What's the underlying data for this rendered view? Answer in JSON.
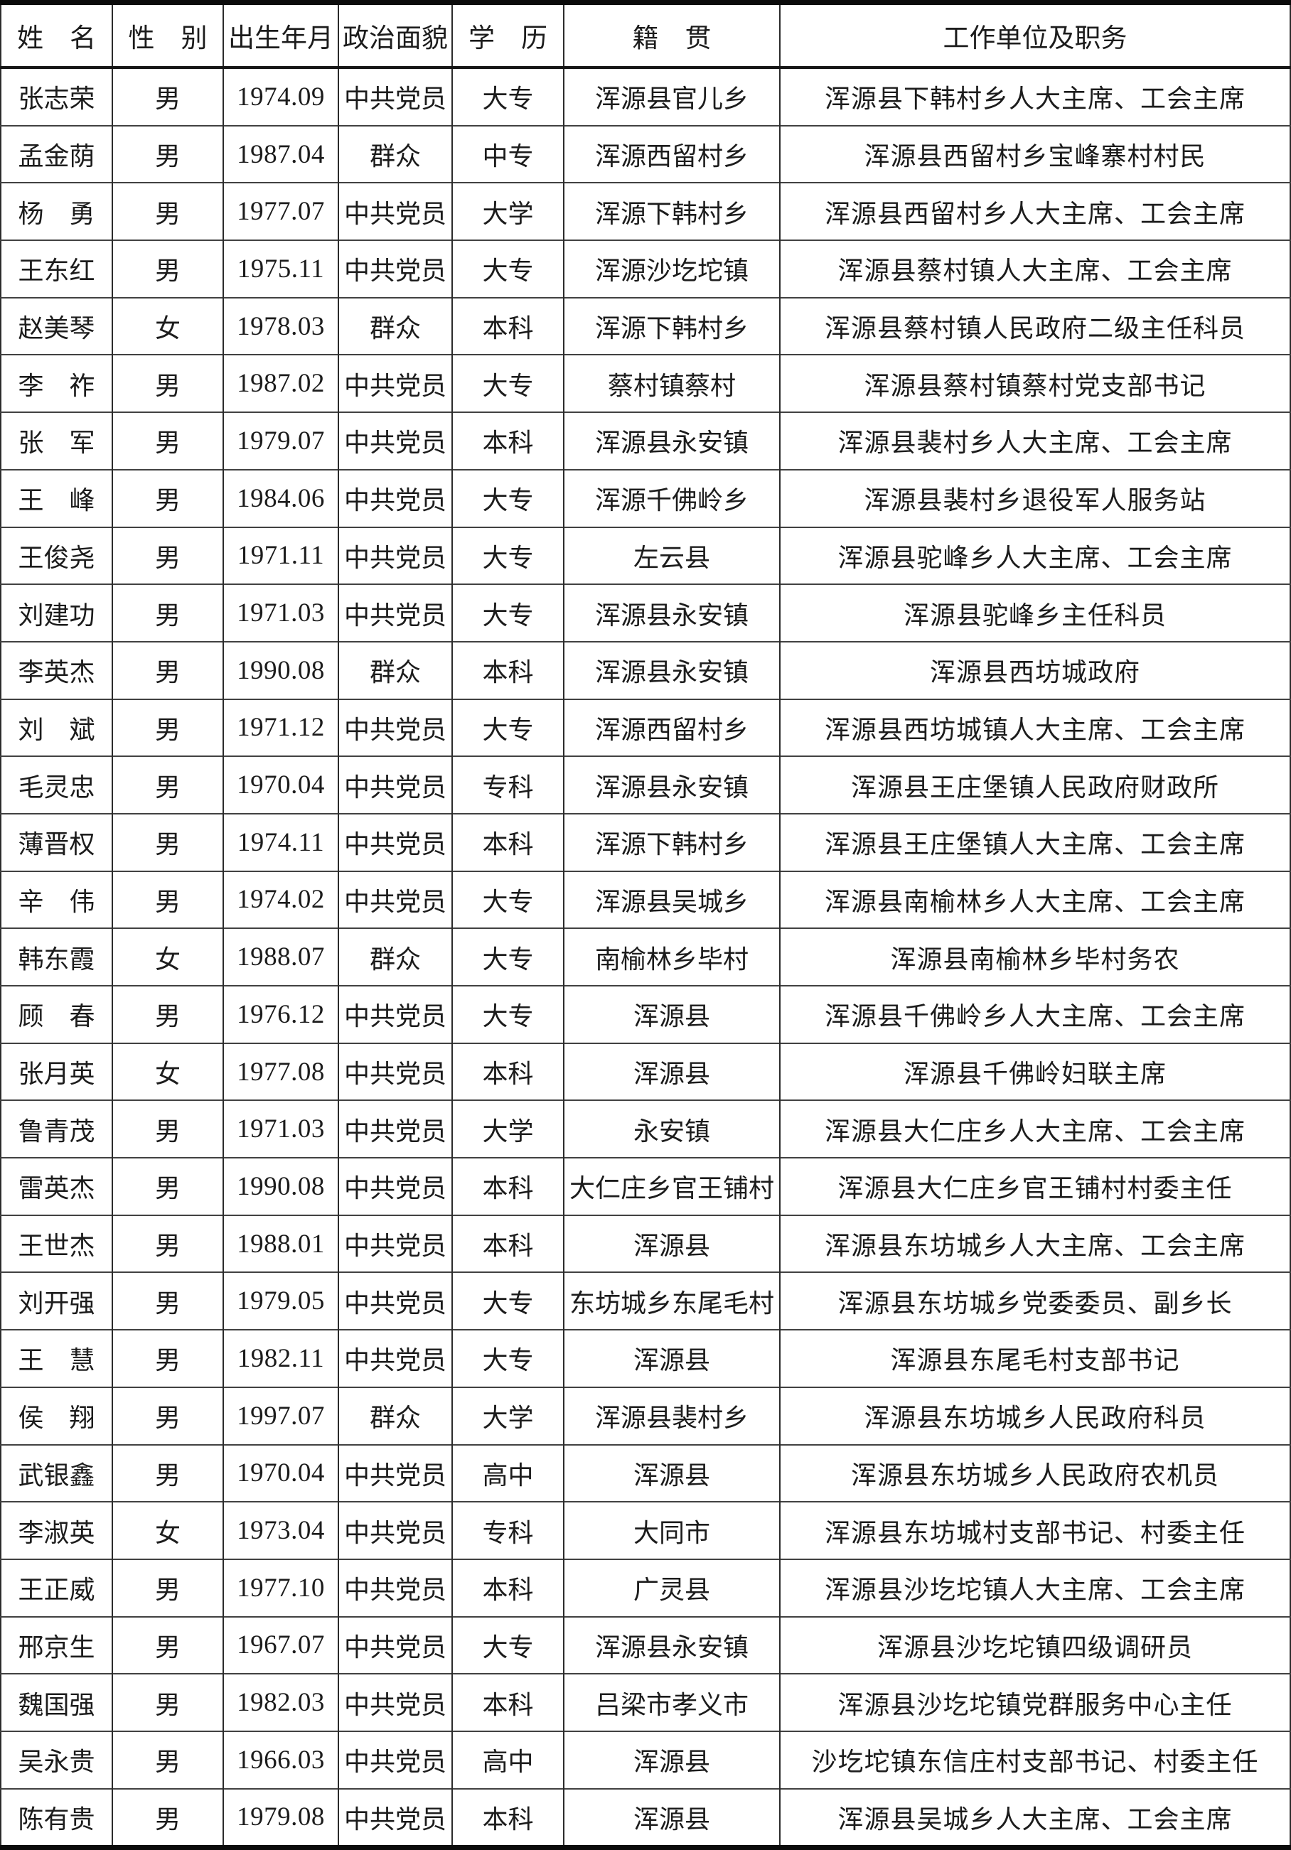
{
  "colors": {
    "ink": "#1c1c1c",
    "grid_line": "#2b2b2b",
    "outer_border": "#0b0b0b"
  },
  "table": {
    "headers": [
      {
        "key": "name",
        "label": "姓　名"
      },
      {
        "key": "gender",
        "label": "性　别"
      },
      {
        "key": "birth",
        "label": "出生年月"
      },
      {
        "key": "political",
        "label": "政治面貌"
      },
      {
        "key": "education",
        "label": "学　历"
      },
      {
        "key": "native",
        "label": "籍　贯"
      },
      {
        "key": "work",
        "label": "工作单位及职务"
      }
    ],
    "rows": [
      {
        "name": "张志荣",
        "gender": "男",
        "birth": "1974.09",
        "political": "中共党员",
        "education": "大专",
        "native": "浑源县官儿乡",
        "work": "浑源县下韩村乡人大主席、工会主席"
      },
      {
        "name": "孟金荫",
        "gender": "男",
        "birth": "1987.04",
        "political": "群众",
        "education": "中专",
        "native": "浑源西留村乡",
        "work": "浑源县西留村乡宝峰寨村村民"
      },
      {
        "name": "杨　勇",
        "gender": "男",
        "birth": "1977.07",
        "political": "中共党员",
        "education": "大学",
        "native": "浑源下韩村乡",
        "work": "浑源县西留村乡人大主席、工会主席"
      },
      {
        "name": "王东红",
        "gender": "男",
        "birth": "1975.11",
        "political": "中共党员",
        "education": "大专",
        "native": "浑源沙圪坨镇",
        "work": "浑源县蔡村镇人大主席、工会主席"
      },
      {
        "name": "赵美琴",
        "gender": "女",
        "birth": "1978.03",
        "political": "群众",
        "education": "本科",
        "native": "浑源下韩村乡",
        "work": "浑源县蔡村镇人民政府二级主任科员"
      },
      {
        "name": "李　祚",
        "gender": "男",
        "birth": "1987.02",
        "political": "中共党员",
        "education": "大专",
        "native": "蔡村镇蔡村",
        "work": "浑源县蔡村镇蔡村党支部书记"
      },
      {
        "name": "张　军",
        "gender": "男",
        "birth": "1979.07",
        "political": "中共党员",
        "education": "本科",
        "native": "浑源县永安镇",
        "work": "浑源县裴村乡人大主席、工会主席"
      },
      {
        "name": "王　峰",
        "gender": "男",
        "birth": "1984.06",
        "political": "中共党员",
        "education": "大专",
        "native": "浑源千佛岭乡",
        "work": "浑源县裴村乡退役军人服务站"
      },
      {
        "name": "王俊尧",
        "gender": "男",
        "birth": "1971.11",
        "political": "中共党员",
        "education": "大专",
        "native": "左云县",
        "work": "浑源县驼峰乡人大主席、工会主席"
      },
      {
        "name": "刘建功",
        "gender": "男",
        "birth": "1971.03",
        "political": "中共党员",
        "education": "大专",
        "native": "浑源县永安镇",
        "work": "浑源县驼峰乡主任科员"
      },
      {
        "name": "李英杰",
        "gender": "男",
        "birth": "1990.08",
        "political": "群众",
        "education": "本科",
        "native": "浑源县永安镇",
        "work": "浑源县西坊城政府"
      },
      {
        "name": "刘　斌",
        "gender": "男",
        "birth": "1971.12",
        "political": "中共党员",
        "education": "大专",
        "native": "浑源西留村乡",
        "work": "浑源县西坊城镇人大主席、工会主席"
      },
      {
        "name": "毛灵忠",
        "gender": "男",
        "birth": "1970.04",
        "political": "中共党员",
        "education": "专科",
        "native": "浑源县永安镇",
        "work": "浑源县王庄堡镇人民政府财政所"
      },
      {
        "name": "薄晋权",
        "gender": "男",
        "birth": "1974.11",
        "political": "中共党员",
        "education": "本科",
        "native": "浑源下韩村乡",
        "work": "浑源县王庄堡镇人大主席、工会主席"
      },
      {
        "name": "辛　伟",
        "gender": "男",
        "birth": "1974.02",
        "political": "中共党员",
        "education": "大专",
        "native": "浑源县吴城乡",
        "work": "浑源县南榆林乡人大主席、工会主席"
      },
      {
        "name": "韩东霞",
        "gender": "女",
        "birth": "1988.07",
        "political": "群众",
        "education": "大专",
        "native": "南榆林乡毕村",
        "work": "浑源县南榆林乡毕村务农"
      },
      {
        "name": "顾　春",
        "gender": "男",
        "birth": "1976.12",
        "political": "中共党员",
        "education": "大专",
        "native": "浑源县",
        "work": "浑源县千佛岭乡人大主席、工会主席"
      },
      {
        "name": "张月英",
        "gender": "女",
        "birth": "1977.08",
        "political": "中共党员",
        "education": "本科",
        "native": "浑源县",
        "work": "浑源县千佛岭妇联主席"
      },
      {
        "name": "鲁青茂",
        "gender": "男",
        "birth": "1971.03",
        "political": "中共党员",
        "education": "大学",
        "native": "永安镇",
        "work": "浑源县大仁庄乡人大主席、工会主席"
      },
      {
        "name": "雷英杰",
        "gender": "男",
        "birth": "1990.08",
        "political": "中共党员",
        "education": "本科",
        "native": "大仁庄乡官王铺村",
        "work": "浑源县大仁庄乡官王铺村村委主任"
      },
      {
        "name": "王世杰",
        "gender": "男",
        "birth": "1988.01",
        "political": "中共党员",
        "education": "本科",
        "native": "浑源县",
        "work": "浑源县东坊城乡人大主席、工会主席"
      },
      {
        "name": "刘开强",
        "gender": "男",
        "birth": "1979.05",
        "political": "中共党员",
        "education": "大专",
        "native": "东坊城乡东尾毛村",
        "work": "浑源县东坊城乡党委委员、副乡长"
      },
      {
        "name": "王　慧",
        "gender": "男",
        "birth": "1982.11",
        "political": "中共党员",
        "education": "大专",
        "native": "浑源县",
        "work": "浑源县东尾毛村支部书记"
      },
      {
        "name": "侯　翔",
        "gender": "男",
        "birth": "1997.07",
        "political": "群众",
        "education": "大学",
        "native": "浑源县裴村乡",
        "work": "浑源县东坊城乡人民政府科员"
      },
      {
        "name": "武银鑫",
        "gender": "男",
        "birth": "1970.04",
        "political": "中共党员",
        "education": "高中",
        "native": "浑源县",
        "work": "浑源县东坊城乡人民政府农机员"
      },
      {
        "name": "李淑英",
        "gender": "女",
        "birth": "1973.04",
        "political": "中共党员",
        "education": "专科",
        "native": "大同市",
        "work": "浑源县东坊城村支部书记、村委主任"
      },
      {
        "name": "王正威",
        "gender": "男",
        "birth": "1977.10",
        "political": "中共党员",
        "education": "本科",
        "native": "广灵县",
        "work": "浑源县沙圪坨镇人大主席、工会主席"
      },
      {
        "name": "邢京生",
        "gender": "男",
        "birth": "1967.07",
        "political": "中共党员",
        "education": "大专",
        "native": "浑源县永安镇",
        "work": "浑源县沙圪坨镇四级调研员"
      },
      {
        "name": "魏国强",
        "gender": "男",
        "birth": "1982.03",
        "political": "中共党员",
        "education": "本科",
        "native": "吕梁市孝义市",
        "work": "浑源县沙圪坨镇党群服务中心主任"
      },
      {
        "name": "吴永贵",
        "gender": "男",
        "birth": "1966.03",
        "political": "中共党员",
        "education": "高中",
        "native": "浑源县",
        "work": "沙圪坨镇东信庄村支部书记、村委主任"
      },
      {
        "name": "陈有贵",
        "gender": "男",
        "birth": "1979.08",
        "political": "中共党员",
        "education": "本科",
        "native": "浑源县",
        "work": "浑源县吴城乡人大主席、工会主席"
      }
    ]
  }
}
